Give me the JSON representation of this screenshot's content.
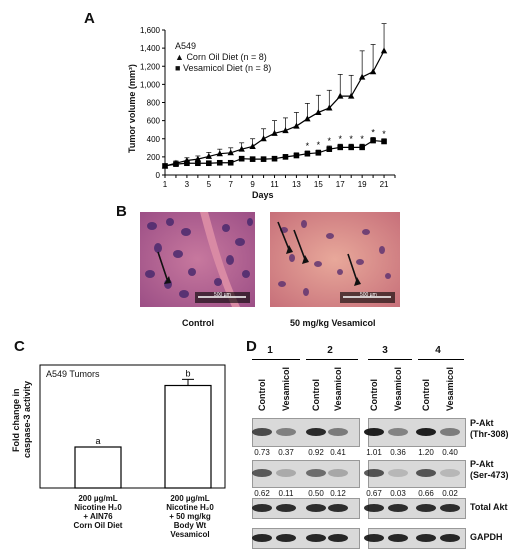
{
  "panelA": {
    "letter": "A",
    "cell_line": "A549",
    "legend": [
      "Corn Oil Diet (n = 8)",
      "Vesamicol Diet (n = 8)"
    ],
    "chart_data": {
      "type": "line",
      "ylabel": "Tumor volume (mm³)",
      "xlabel": "Days",
      "ylim": [
        0,
        1600
      ],
      "xlim": [
        1,
        22
      ],
      "yticks": [
        "0",
        "200",
        "400",
        "600",
        "800",
        "1,000",
        "1,200",
        "1,400",
        "1,600"
      ],
      "xticks": [
        "1",
        "3",
        "5",
        "7",
        "9",
        "11",
        "13",
        "15",
        "17",
        "19",
        "21"
      ],
      "series": [
        {
          "name": "Corn Oil Diet (n = 8)",
          "marker": "triangle",
          "x": [
            1,
            2,
            3,
            4,
            5,
            6,
            7,
            8,
            9,
            10,
            11,
            12,
            13,
            14,
            15,
            16,
            17,
            18,
            19,
            20,
            21
          ],
          "y": [
            100,
            130,
            160,
            175,
            205,
            235,
            245,
            285,
            315,
            400,
            460,
            490,
            540,
            620,
            690,
            740,
            870,
            870,
            1080,
            1140,
            1370
          ],
          "err": [
            20,
            25,
            30,
            35,
            45,
            50,
            55,
            70,
            85,
            110,
            140,
            140,
            150,
            170,
            190,
            195,
            240,
            230,
            290,
            300,
            300
          ]
        },
        {
          "name": "Vesamicol Diet (n = 8)",
          "marker": "square",
          "x": [
            1,
            2,
            3,
            4,
            5,
            6,
            7,
            8,
            9,
            10,
            11,
            12,
            13,
            14,
            15,
            16,
            17,
            18,
            19,
            20,
            21
          ],
          "y": [
            100,
            120,
            130,
            130,
            130,
            135,
            135,
            180,
            175,
            175,
            180,
            200,
            215,
            235,
            245,
            285,
            305,
            305,
            305,
            380,
            370
          ],
          "err": [
            15,
            15,
            15,
            15,
            15,
            15,
            15,
            20,
            20,
            20,
            25,
            25,
            30,
            30,
            30,
            35,
            35,
            35,
            35,
            35,
            30
          ]
        }
      ],
      "significant_days": [
        14,
        15,
        16,
        17,
        18,
        19,
        20,
        21
      ],
      "sig_mark": "*"
    }
  },
  "panelB": {
    "letter": "B",
    "labels": [
      "Control",
      "50 mg/kg Vesamicol"
    ],
    "scalebar": "500 µm"
  },
  "panelC": {
    "letter": "C",
    "title": "A549 Tumors",
    "ylabel_lines": [
      "Fold change in",
      "caspase-3 activity"
    ],
    "chart_data": {
      "type": "bar",
      "categories": [
        "200 µg/mL Nicotine H₂0 + AIN76 Corn Oil Diet",
        "200 µg/mL Nicotine H₂0 + 50 mg/kg Body Wt Vesamicol"
      ],
      "values": [
        1.0,
        2.5
      ],
      "err": [
        0,
        0.15
      ],
      "letters": [
        "a",
        "b"
      ],
      "ylim": [
        0,
        3
      ]
    },
    "cat1_lines": [
      "200 µg/mL",
      "Nicotine H₂0",
      "+ AIN76",
      "Corn Oil Diet"
    ],
    "cat2_lines": [
      "200 µg/mL",
      "Nicotine H₂0",
      "+ 50 mg/kg",
      "Body Wt",
      "Vesamicol"
    ]
  },
  "panelD": {
    "letter": "D",
    "groups": [
      "1",
      "2",
      "3",
      "4"
    ],
    "lanes": [
      "Control",
      "Vesamicol",
      "Control",
      "Vesamicol",
      "Control",
      "Vesamicol",
      "Control",
      "Vesamicol"
    ],
    "thr308_values": [
      "0.73",
      "0.37",
      "0.92",
      "0.41",
      "1.01",
      "0.36",
      "1.20",
      "0.40"
    ],
    "ser473_values": [
      "0.62",
      "0.11",
      "0.50",
      "0.12",
      "0.67",
      "0.03",
      "0.66",
      "0.02"
    ],
    "row_labels": {
      "thr": [
        "P-Akt",
        "(Thr-308)"
      ],
      "ser": [
        "P-Akt",
        "(Ser-473)"
      ],
      "total": "Total Akt",
      "gapdh": "GAPDH"
    }
  }
}
